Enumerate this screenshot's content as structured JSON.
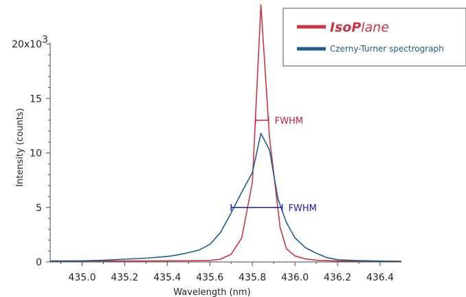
{
  "chart_data": {
    "type": "line",
    "xlabel": "Wavelength (nm)",
    "ylabel": "Intensity (counts)",
    "xlim": [
      434.85,
      436.5
    ],
    "ylim": [
      0,
      20000
    ],
    "x_ticks": [
      435.0,
      435.2,
      435.4,
      435.6,
      435.8,
      436.0,
      436.2,
      436.4
    ],
    "x_tick_labels": [
      "435.0",
      "435.2",
      "435.4",
      "435.6",
      "435.8",
      "436.0",
      "436.2",
      "436.4"
    ],
    "y_ticks": [
      0,
      5000,
      10000,
      15000,
      20000
    ],
    "y_tick_labels": [
      "0",
      "5",
      "10",
      "15",
      "20x10"
    ],
    "y_multiplier_exponent": "3",
    "grid": false,
    "legend_position": "top-right",
    "series": [
      {
        "name": "IsoPlane",
        "color": "#cc3340",
        "x": [
          434.85,
          435.0,
          435.2,
          435.4,
          435.5,
          435.6,
          435.65,
          435.7,
          435.75,
          435.8,
          435.84,
          435.88,
          435.93,
          435.96,
          436.0,
          436.05,
          436.1,
          436.2,
          436.5
        ],
        "y": [
          80,
          80,
          90,
          100,
          110,
          130,
          250,
          700,
          2200,
          7300,
          23600,
          11500,
          3200,
          1200,
          550,
          280,
          150,
          80,
          50
        ]
      },
      {
        "name": "Czerny-Turner spectrograph",
        "color": "#1e5a8c",
        "x": [
          434.85,
          435.0,
          435.1,
          435.2,
          435.3,
          435.4,
          435.45,
          435.5,
          435.55,
          435.6,
          435.65,
          435.7,
          435.75,
          435.8,
          435.84,
          435.88,
          435.92,
          435.96,
          436.0,
          436.05,
          436.1,
          436.15,
          436.2,
          436.3,
          436.4,
          436.5
        ],
        "y": [
          80,
          100,
          150,
          250,
          350,
          500,
          650,
          850,
          1100,
          1600,
          2700,
          4500,
          6400,
          8200,
          11800,
          10300,
          5800,
          3600,
          2200,
          1300,
          800,
          400,
          200,
          120,
          80,
          60
        ]
      }
    ],
    "annotations": [
      {
        "label": "FWHM",
        "series": "IsoPlane",
        "y": 13000,
        "x_start": 435.815,
        "x_end": 435.876,
        "color": "#d0203a"
      },
      {
        "label": "FWHM",
        "series": "Czerny-Turner spectrograph",
        "y": 5000,
        "x_start": 435.7,
        "x_end": 435.94,
        "color": "#1a1acc"
      }
    ],
    "legend": {
      "entries": [
        {
          "label_prefix": "Iso",
          "label_mid": "P",
          "label_suffix": "lane",
          "color": "#cc3340"
        },
        {
          "label": "Czerny-Turner spectrograph",
          "color": "#1e5a8c"
        }
      ]
    }
  }
}
